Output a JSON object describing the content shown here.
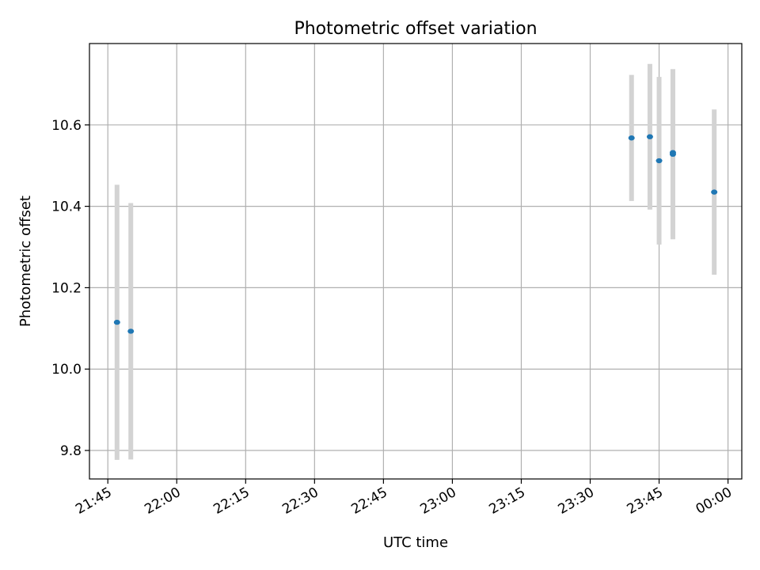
{
  "chart_data": {
    "type": "scatter",
    "title": "Photometric offset variation",
    "xlabel": "UTC time",
    "ylabel": "Photometric offset",
    "x_axis_kind": "time",
    "x_tick_labels": [
      "21:45",
      "22:00",
      "22:15",
      "22:30",
      "22:45",
      "23:00",
      "23:15",
      "23:30",
      "23:45",
      "00:00"
    ],
    "y_tick_values": [
      9.8,
      10.0,
      10.2,
      10.4,
      10.6
    ],
    "y_tick_labels": [
      "9.8",
      "10.0",
      "10.2",
      "10.4",
      "10.6"
    ],
    "xlim": [
      "21:41",
      "00:03"
    ],
    "ylim": [
      9.73,
      10.8
    ],
    "grid": true,
    "series": [
      {
        "x": [
          "21:47",
          "21:50",
          "23:39",
          "23:43",
          "23:45",
          "23:48",
          "23:48",
          "23:57"
        ],
        "y": [
          10.115,
          10.093,
          10.568,
          10.571,
          10.512,
          10.528,
          10.532,
          10.435
        ],
        "yerr": [
          0.338,
          0.315,
          0.155,
          0.179,
          0.206,
          0.209,
          0.205,
          0.203
        ],
        "color": "#1f77b4",
        "error_bar_color": "#d3d3d3"
      }
    ]
  }
}
